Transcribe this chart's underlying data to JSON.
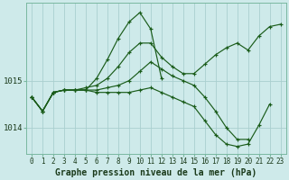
{
  "title": "Graphe pression niveau de la mer (hPa)",
  "background_color": "#ceeaea",
  "grid_color": "#aacfcf",
  "line_color": "#1a5c1a",
  "hours": [
    0,
    1,
    2,
    3,
    4,
    5,
    6,
    7,
    8,
    9,
    10,
    11,
    12,
    13,
    14,
    15,
    16,
    17,
    18,
    19,
    20,
    21,
    22,
    23
  ],
  "series": [
    [
      1014.65,
      1014.35,
      1014.75,
      1014.8,
      1014.8,
      1014.8,
      1015.05,
      1015.45,
      1015.9,
      1016.25,
      1016.45,
      1016.1,
      1015.05,
      null,
      null,
      null,
      null,
      null,
      null,
      null,
      null,
      null,
      null,
      null
    ],
    [
      1014.65,
      1014.35,
      1014.75,
      1014.8,
      1014.8,
      1014.85,
      1014.9,
      1015.05,
      1015.3,
      1015.6,
      1015.8,
      1015.8,
      1015.5,
      1015.3,
      1015.15,
      1015.15,
      1015.35,
      1015.55,
      1015.7,
      1015.8,
      1015.65,
      1015.95,
      1016.15,
      1016.2
    ],
    [
      1014.65,
      1014.35,
      1014.75,
      1014.8,
      1014.8,
      1014.8,
      1014.8,
      1014.85,
      1014.9,
      1015.0,
      1015.2,
      1015.4,
      1015.25,
      1015.1,
      1015.0,
      1014.9,
      1014.65,
      1014.35,
      1014.0,
      1013.75,
      1013.75,
      null,
      null,
      null
    ],
    [
      1014.65,
      1014.35,
      1014.75,
      1014.8,
      1014.8,
      1014.8,
      1014.75,
      1014.75,
      1014.75,
      1014.75,
      1014.8,
      1014.85,
      1014.75,
      1014.65,
      1014.55,
      1014.45,
      1014.15,
      1013.85,
      1013.65,
      1013.6,
      1013.65,
      1014.05,
      1014.5,
      null
    ]
  ],
  "ylim": [
    1013.45,
    1016.65
  ],
  "yticks": [
    1014,
    1015
  ],
  "title_fontsize": 7,
  "tick_fontsize": 5.5,
  "ytick_fontsize": 6.5
}
